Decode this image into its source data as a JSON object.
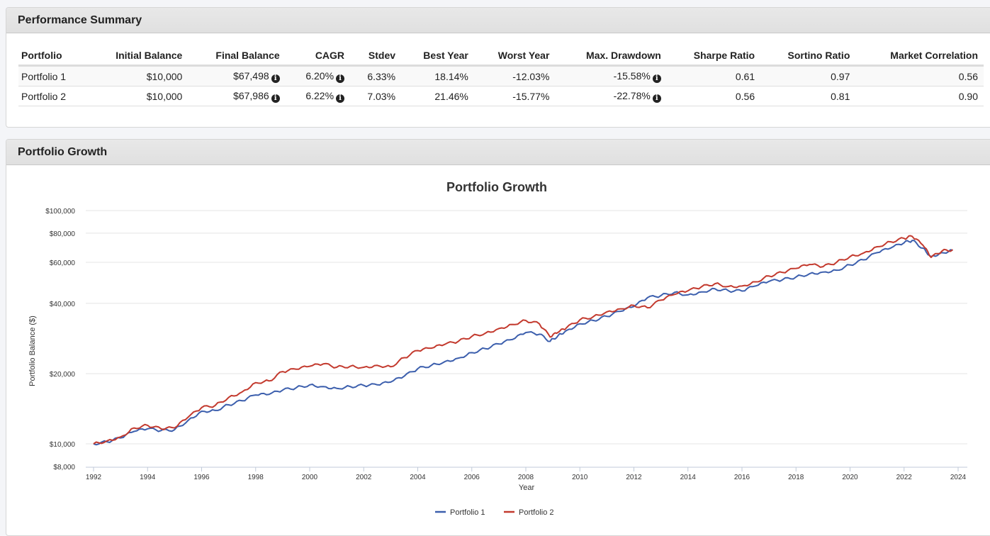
{
  "summary": {
    "title": "Performance Summary",
    "columns": [
      "Portfolio",
      "Initial Balance",
      "Final Balance",
      "CAGR",
      "Stdev",
      "Best Year",
      "Worst Year",
      "Max. Drawdown",
      "Sharpe Ratio",
      "Sortino Ratio",
      "Market Correlation"
    ],
    "rows": [
      {
        "portfolio": "Portfolio 1",
        "initial": "$10,000",
        "final": "$67,498",
        "cagr": "6.20%",
        "stdev": "6.33%",
        "best": "18.14%",
        "worst": "-12.03%",
        "drawdown": "-15.58%",
        "sharpe": "0.61",
        "sortino": "0.97",
        "correlation": "0.56"
      },
      {
        "portfolio": "Portfolio 2",
        "initial": "$10,000",
        "final": "$67,986",
        "cagr": "6.22%",
        "stdev": "7.03%",
        "best": "21.46%",
        "worst": "-15.77%",
        "drawdown": "-22.78%",
        "sharpe": "0.56",
        "sortino": "0.81",
        "correlation": "0.90"
      }
    ],
    "info_icon": "info-circle-icon"
  },
  "growth": {
    "title": "Portfolio Growth"
  },
  "chart_data": {
    "type": "line",
    "title": "Portfolio Growth",
    "xlabel": "Year",
    "ylabel": "Portfolio Balance ($)",
    "yscale": "log",
    "ylim": [
      8000,
      100000
    ],
    "xlim": [
      1992,
      2024
    ],
    "yticks": [
      100000,
      80000,
      60000,
      40000,
      20000,
      10000,
      8000
    ],
    "ytick_labels": [
      "$100,000",
      "$80,000",
      "$60,000",
      "$40,000",
      "$20,000",
      "$10,000",
      "$8,000"
    ],
    "xticks": [
      1992,
      1994,
      1996,
      1998,
      2000,
      2002,
      2004,
      2006,
      2008,
      2010,
      2012,
      2014,
      2016,
      2018,
      2020,
      2022,
      2024
    ],
    "xtick_labels": [
      "1992",
      "1994",
      "1996",
      "1998",
      "2000",
      "2002",
      "2004",
      "2006",
      "2008",
      "2010",
      "2012",
      "2014",
      "2016",
      "2018",
      "2020",
      "2022",
      "2024"
    ],
    "grid": true,
    "legend": "bottom-center",
    "series": [
      {
        "name": "Portfolio 1",
        "color": "#3c5fad",
        "x": [
          1992,
          1992.5,
          1993,
          1993.5,
          1994,
          1994.5,
          1995,
          1995.5,
          1996,
          1996.5,
          1997,
          1997.5,
          1998,
          1998.5,
          1999,
          1999.5,
          2000,
          2000.5,
          2001,
          2001.5,
          2002,
          2002.5,
          2003,
          2003.5,
          2004,
          2004.5,
          2005,
          2005.5,
          2006,
          2006.5,
          2007,
          2007.5,
          2008,
          2008.5,
          2008.9,
          2009.2,
          2009.5,
          2010,
          2010.5,
          2011,
          2011.5,
          2012,
          2012.5,
          2013,
          2013.5,
          2014,
          2014.5,
          2015,
          2015.5,
          2016,
          2016.5,
          2017,
          2017.5,
          2018,
          2018.5,
          2019,
          2019.5,
          2020,
          2020.5,
          2021,
          2021.5,
          2022,
          2022.3,
          2022.7,
          2023,
          2023.4,
          2023.8
        ],
        "y": [
          10000,
          10200,
          10600,
          11300,
          11600,
          11400,
          11500,
          12600,
          13800,
          13900,
          14700,
          15300,
          16200,
          16300,
          17000,
          17400,
          17900,
          17600,
          17300,
          17600,
          17800,
          17900,
          18400,
          19500,
          21000,
          21700,
          22500,
          23300,
          24600,
          25600,
          26800,
          28000,
          30000,
          29500,
          27500,
          29200,
          30600,
          32700,
          33800,
          35200,
          37000,
          38800,
          42300,
          43200,
          44600,
          43500,
          44800,
          46200,
          45300,
          45200,
          47500,
          49700,
          50500,
          51900,
          53600,
          54500,
          55500,
          58500,
          61500,
          66000,
          69000,
          72800,
          74500,
          69000,
          63500,
          66000,
          67500
        ]
      },
      {
        "name": "Portfolio 2",
        "color": "#c33a2e",
        "x": [
          1992,
          1992.5,
          1993,
          1993.5,
          1994,
          1994.5,
          1995,
          1995.5,
          1996,
          1996.5,
          1997,
          1997.5,
          1998,
          1998.5,
          1999,
          1999.5,
          2000,
          2000.5,
          2001,
          2001.5,
          2002,
          2002.5,
          2003,
          2003.5,
          2004,
          2004.5,
          2005,
          2005.5,
          2006,
          2006.5,
          2007,
          2007.5,
          2008,
          2008.5,
          2008.9,
          2009.2,
          2009.5,
          2010,
          2010.5,
          2011,
          2011.5,
          2012,
          2012.5,
          2013,
          2013.5,
          2014,
          2014.5,
          2015,
          2015.5,
          2016,
          2016.5,
          2017,
          2017.5,
          2018,
          2018.5,
          2019,
          2019.5,
          2020,
          2020.5,
          2021,
          2021.5,
          2022,
          2022.3,
          2022.7,
          2023,
          2023.4,
          2023.8
        ],
        "y": [
          10000,
          10300,
          10700,
          11700,
          12000,
          11600,
          11700,
          13000,
          14300,
          14600,
          15800,
          16700,
          18300,
          18600,
          20400,
          20900,
          21500,
          22000,
          21300,
          21500,
          21300,
          21700,
          21400,
          23400,
          25100,
          25700,
          26700,
          27500,
          28900,
          29800,
          31200,
          32500,
          33800,
          32700,
          28700,
          30100,
          31400,
          34000,
          35100,
          36800,
          37900,
          39200,
          38300,
          41300,
          43700,
          45300,
          47100,
          48600,
          47300,
          47500,
          49500,
          52400,
          54300,
          56500,
          58700,
          57500,
          60000,
          63500,
          65800,
          70000,
          73500,
          76000,
          77500,
          71000,
          63000,
          67000,
          68000
        ]
      }
    ]
  }
}
